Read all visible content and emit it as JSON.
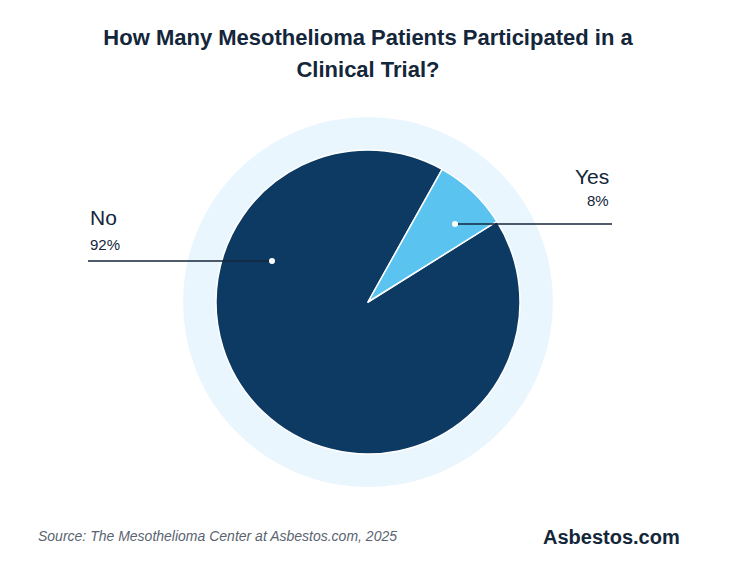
{
  "chart_data": {
    "type": "pie",
    "title": "How Many Mesothelioma Patients Participated in a Clinical Trial?",
    "categories": [
      "No",
      "Yes"
    ],
    "values": [
      92,
      8
    ],
    "value_labels": [
      "92%",
      "8%"
    ],
    "colors": [
      "#0d3a63",
      "#5bc3f0"
    ],
    "data_labels": true,
    "annotations": [
      "Source: The Mesothelioma Center at Asbestos.com, 2025",
      "Asbestos.com"
    ]
  }
}
